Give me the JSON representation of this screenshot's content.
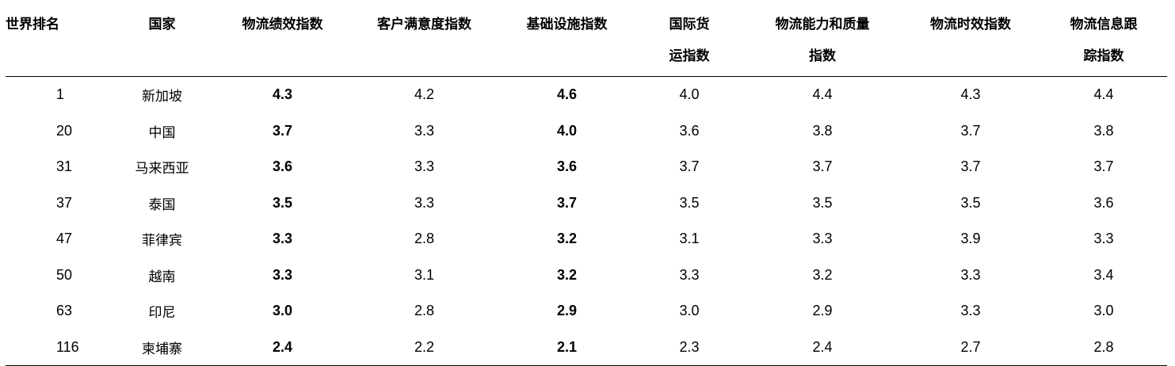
{
  "table": {
    "headers": {
      "rank": "世界排名",
      "country": "国家",
      "lpi": "物流绩效指数",
      "customs": "客户满意度指数",
      "infrastructure": "基础设施指数",
      "intl_shipments_1": "国际货",
      "intl_shipments_2": "运指数",
      "logistics_quality_1": "物流能力和质量",
      "logistics_quality_2": "指数",
      "timeliness": "物流时效指数",
      "tracking_1": "物流信息跟",
      "tracking_2": "踪指数"
    },
    "rows": [
      {
        "rank": "1",
        "country": "新加坡",
        "lpi": "4.3",
        "customs": "4.2",
        "infrastructure": "4.6",
        "intl_shipments": "4.0",
        "logistics_quality": "4.4",
        "timeliness": "4.3",
        "tracking": "4.4"
      },
      {
        "rank": "20",
        "country": "中国",
        "lpi": "3.7",
        "customs": "3.3",
        "infrastructure": "4.0",
        "intl_shipments": "3.6",
        "logistics_quality": "3.8",
        "timeliness": "3.7",
        "tracking": "3.8"
      },
      {
        "rank": "31",
        "country": "马来西亚",
        "lpi": "3.6",
        "customs": "3.3",
        "infrastructure": "3.6",
        "intl_shipments": "3.7",
        "logistics_quality": "3.7",
        "timeliness": "3.7",
        "tracking": "3.7"
      },
      {
        "rank": "37",
        "country": "泰国",
        "lpi": "3.5",
        "customs": "3.3",
        "infrastructure": "3.7",
        "intl_shipments": "3.5",
        "logistics_quality": "3.5",
        "timeliness": "3.5",
        "tracking": "3.6"
      },
      {
        "rank": "47",
        "country": "菲律宾",
        "lpi": "3.3",
        "customs": "2.8",
        "infrastructure": "3.2",
        "intl_shipments": "3.1",
        "logistics_quality": "3.3",
        "timeliness": "3.9",
        "tracking": "3.3"
      },
      {
        "rank": "50",
        "country": "越南",
        "lpi": "3.3",
        "customs": "3.1",
        "infrastructure": "3.2",
        "intl_shipments": "3.3",
        "logistics_quality": "3.2",
        "timeliness": "3.3",
        "tracking": "3.4"
      },
      {
        "rank": "63",
        "country": "印尼",
        "lpi": "3.0",
        "customs": "2.8",
        "infrastructure": "2.9",
        "intl_shipments": "3.0",
        "logistics_quality": "2.9",
        "timeliness": "3.3",
        "tracking": "3.0"
      },
      {
        "rank": "116",
        "country": "柬埔寨",
        "lpi": "2.4",
        "customs": "2.2",
        "infrastructure": "2.1",
        "intl_shipments": "2.3",
        "logistics_quality": "2.4",
        "timeliness": "2.7",
        "tracking": "2.8"
      }
    ]
  }
}
